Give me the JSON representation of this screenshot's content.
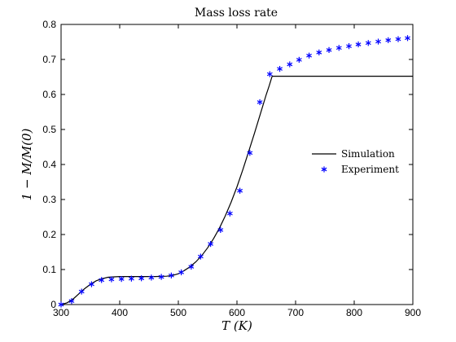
{
  "chart_data": {
    "type": "line",
    "title": "Mass loss rate",
    "xlabel": "T (K)",
    "ylabel": "1 − M/M(0)",
    "xlim": [
      300,
      900
    ],
    "ylim": [
      0,
      0.8
    ],
    "xticks": [
      300,
      400,
      500,
      600,
      700,
      800,
      900
    ],
    "yticks": [
      0,
      0.1,
      0.2,
      0.3,
      0.4,
      0.5,
      0.6,
      0.7,
      0.8
    ],
    "xtick_labels": [
      "300",
      "400",
      "500",
      "600",
      "700",
      "800",
      "900"
    ],
    "ytick_labels": [
      "0",
      "0.1",
      "0.2",
      "0.3",
      "0.4",
      "0.5",
      "0.6",
      "0.7",
      "0.8"
    ],
    "grid": false,
    "legend_position": "right",
    "series": [
      {
        "name": "Simulation",
        "style": "line",
        "color": "#000000",
        "x": [
          300,
          310,
          320,
          330,
          340,
          350,
          360,
          370,
          380,
          390,
          400,
          420,
          440,
          460,
          480,
          490,
          500,
          510,
          520,
          530,
          540,
          550,
          560,
          570,
          580,
          590,
          600,
          610,
          620,
          630,
          640,
          650,
          655,
          660,
          680,
          700,
          750,
          800,
          850,
          900
        ],
        "y": [
          0,
          0.005,
          0.015,
          0.03,
          0.045,
          0.058,
          0.068,
          0.074,
          0.078,
          0.079,
          0.08,
          0.08,
          0.08,
          0.08,
          0.081,
          0.083,
          0.088,
          0.097,
          0.108,
          0.122,
          0.14,
          0.162,
          0.188,
          0.218,
          0.253,
          0.292,
          0.336,
          0.385,
          0.437,
          0.49,
          0.545,
          0.6,
          0.625,
          0.652,
          0.652,
          0.652,
          0.652,
          0.652,
          0.652,
          0.652
        ]
      },
      {
        "name": "Experiment",
        "style": "marker",
        "marker": "asterisk",
        "color": "#0000ff",
        "x": [
          300,
          318,
          335,
          352,
          369,
          386,
          403,
          420,
          437,
          454,
          471,
          488,
          505,
          522,
          538,
          555,
          572,
          588,
          605,
          622,
          639,
          656,
          673,
          690,
          706,
          723,
          740,
          757,
          774,
          791,
          807,
          824,
          841,
          858,
          875,
          891
        ],
        "y": [
          0,
          0.01,
          0.037,
          0.058,
          0.07,
          0.072,
          0.073,
          0.074,
          0.075,
          0.077,
          0.079,
          0.083,
          0.092,
          0.108,
          0.137,
          0.173,
          0.213,
          0.26,
          0.325,
          0.433,
          0.578,
          0.658,
          0.673,
          0.686,
          0.699,
          0.711,
          0.72,
          0.727,
          0.733,
          0.738,
          0.743,
          0.747,
          0.751,
          0.755,
          0.758,
          0.761
        ]
      }
    ]
  }
}
